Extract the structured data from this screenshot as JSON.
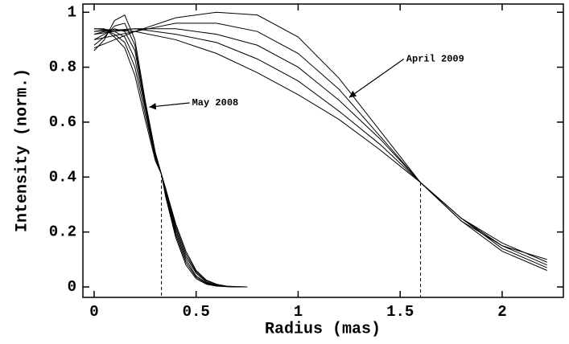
{
  "chart_data": {
    "type": "line",
    "xlabel": "Radius (mas)",
    "ylabel": "Intensity (norm.)",
    "xlim": [
      -0.055,
      2.3
    ],
    "ylim": [
      -0.038,
      1.03
    ],
    "xticks": [
      0,
      0.5,
      1,
      1.5,
      2
    ],
    "yticks": [
      0,
      0.2,
      0.4,
      0.6,
      0.8,
      1
    ],
    "color": "#000000",
    "series": [
      {
        "x": [
          0,
          0.05,
          0.1,
          0.15,
          0.2,
          0.25,
          0.3,
          0.33,
          0.35,
          0.4,
          0.45,
          0.5,
          0.55,
          0.6,
          0.65,
          0.7,
          0.75
        ],
        "values": [
          0.86,
          0.9,
          0.97,
          0.99,
          0.9,
          0.68,
          0.49,
          0.41,
          0.33,
          0.18,
          0.08,
          0.03,
          0.01,
          0.003,
          0.001,
          0,
          0
        ]
      },
      {
        "x": [
          0,
          0.05,
          0.1,
          0.15,
          0.2,
          0.25,
          0.3,
          0.33,
          0.35,
          0.4,
          0.45,
          0.5,
          0.55,
          0.6,
          0.65,
          0.7,
          0.75
        ],
        "values": [
          0.88,
          0.91,
          0.95,
          0.96,
          0.88,
          0.67,
          0.48,
          0.41,
          0.34,
          0.19,
          0.09,
          0.035,
          0.012,
          0.004,
          0.001,
          0,
          0
        ]
      },
      {
        "x": [
          0,
          0.05,
          0.1,
          0.15,
          0.2,
          0.25,
          0.3,
          0.33,
          0.35,
          0.4,
          0.45,
          0.5,
          0.55,
          0.6,
          0.65,
          0.7,
          0.75
        ],
        "values": [
          0.9,
          0.92,
          0.94,
          0.93,
          0.86,
          0.66,
          0.48,
          0.41,
          0.35,
          0.2,
          0.1,
          0.04,
          0.015,
          0.005,
          0.001,
          0,
          0
        ]
      },
      {
        "x": [
          0,
          0.05,
          0.1,
          0.15,
          0.2,
          0.25,
          0.3,
          0.33,
          0.35,
          0.4,
          0.45,
          0.5,
          0.55,
          0.6,
          0.65,
          0.7,
          0.75
        ],
        "values": [
          0.92,
          0.93,
          0.93,
          0.91,
          0.83,
          0.65,
          0.47,
          0.41,
          0.35,
          0.21,
          0.11,
          0.05,
          0.018,
          0.006,
          0.002,
          0,
          0
        ]
      },
      {
        "x": [
          0,
          0.05,
          0.1,
          0.15,
          0.2,
          0.25,
          0.3,
          0.33,
          0.35,
          0.4,
          0.45,
          0.5,
          0.55,
          0.6,
          0.65,
          0.7,
          0.75
        ],
        "values": [
          0.93,
          0.935,
          0.92,
          0.89,
          0.8,
          0.63,
          0.47,
          0.41,
          0.36,
          0.22,
          0.12,
          0.055,
          0.022,
          0.008,
          0.002,
          0.001,
          0
        ]
      },
      {
        "x": [
          0,
          0.05,
          0.1,
          0.15,
          0.2,
          0.25,
          0.3,
          0.33,
          0.35,
          0.4,
          0.45,
          0.5,
          0.55,
          0.6,
          0.65,
          0.7,
          0.75
        ],
        "values": [
          0.94,
          0.94,
          0.91,
          0.87,
          0.77,
          0.61,
          0.46,
          0.41,
          0.36,
          0.23,
          0.13,
          0.06,
          0.025,
          0.01,
          0.003,
          0.001,
          0
        ]
      },
      {
        "x": [
          0,
          0.2,
          0.4,
          0.6,
          0.8,
          1.0,
          1.2,
          1.4,
          1.6,
          1.8,
          2.0,
          2.22
        ],
        "values": [
          0.87,
          0.93,
          0.98,
          1.0,
          0.99,
          0.91,
          0.76,
          0.57,
          0.38,
          0.24,
          0.15,
          0.1
        ]
      },
      {
        "x": [
          0,
          0.2,
          0.4,
          0.6,
          0.8,
          1.0,
          1.2,
          1.4,
          1.6,
          1.8,
          2.0,
          2.22
        ],
        "values": [
          0.9,
          0.93,
          0.96,
          0.96,
          0.93,
          0.85,
          0.72,
          0.55,
          0.38,
          0.25,
          0.16,
          0.09
        ]
      },
      {
        "x": [
          0,
          0.2,
          0.4,
          0.6,
          0.8,
          1.0,
          1.2,
          1.4,
          1.6,
          1.8,
          2.0,
          2.22
        ],
        "values": [
          0.92,
          0.94,
          0.94,
          0.92,
          0.88,
          0.8,
          0.68,
          0.54,
          0.38,
          0.25,
          0.15,
          0.08
        ]
      },
      {
        "x": [
          0,
          0.2,
          0.4,
          0.6,
          0.8,
          1.0,
          1.2,
          1.4,
          1.6,
          1.8,
          2.0,
          2.22
        ],
        "values": [
          0.93,
          0.94,
          0.92,
          0.89,
          0.83,
          0.75,
          0.64,
          0.52,
          0.38,
          0.25,
          0.14,
          0.07
        ]
      },
      {
        "x": [
          0,
          0.2,
          0.4,
          0.6,
          0.8,
          1.0,
          1.2,
          1.4,
          1.6,
          1.8,
          2.0,
          2.22
        ],
        "values": [
          0.94,
          0.93,
          0.9,
          0.85,
          0.78,
          0.7,
          0.61,
          0.5,
          0.38,
          0.24,
          0.13,
          0.06
        ]
      }
    ],
    "markers": [
      {
        "x": 0.33,
        "y": 0.41
      },
      {
        "x": 1.6,
        "y": 0.38
      }
    ],
    "annotations": [
      {
        "text": "May 2008",
        "xy": [
          0.27,
          0.655
        ],
        "xytext": [
          0.48,
          0.67
        ]
      },
      {
        "text": "April 2009",
        "xy": [
          1.25,
          0.69
        ],
        "xytext": [
          1.53,
          0.83
        ]
      }
    ]
  }
}
